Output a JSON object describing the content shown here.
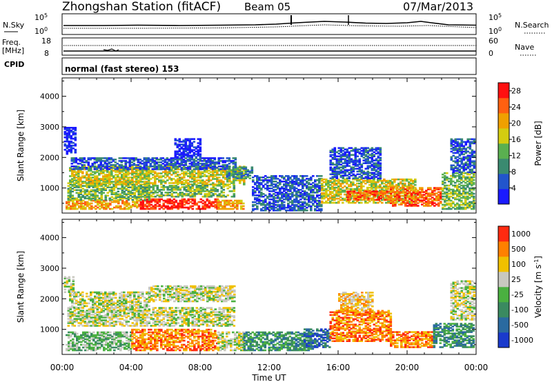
{
  "header": {
    "title": "Zhongshan Station (fitACF)",
    "beam": "Beam 05",
    "date": "07/Mar/2013"
  },
  "strips": {
    "nsky": {
      "label": "N.Sky",
      "left_ticks": [
        "10^5",
        "10^0"
      ],
      "right_ticks": [
        "10^5",
        "10^0"
      ],
      "right_label": "N.Search"
    },
    "freq": {
      "label_top": "Freq.",
      "label_bottom": "[MHz]",
      "left_ticks": [
        "18",
        "8"
      ],
      "right_ticks": [
        "60",
        "0"
      ],
      "right_label": "Nave"
    },
    "cpid": {
      "label": "CPID",
      "text": "normal (fast stereo) 153"
    }
  },
  "chart_data": [
    {
      "type": "heatmap",
      "panel": "power",
      "ylabel": "Slant Range [km]",
      "xlabel": "Time UT",
      "xlim": [
        "00:00",
        "24:00"
      ],
      "ylim": [
        180,
        4600
      ],
      "y_ticks": [
        1000,
        2000,
        3000,
        4000
      ],
      "x_ticks": [
        "00:00",
        "04:00",
        "08:00",
        "12:00",
        "16:00",
        "20:00",
        "00:00"
      ],
      "colorbar": {
        "label": "Power [dB]",
        "ticks": [
          4,
          8,
          12,
          16,
          20,
          24,
          28
        ],
        "range": [
          0,
          30
        ],
        "colors": [
          "#1a1aff",
          "#2255cc",
          "#3a8a70",
          "#5ab050",
          "#d4cc10",
          "#f0a000",
          "#ff6010",
          "#ff1010"
        ]
      },
      "blobs": [
        {
          "t0": 0.2,
          "t1": 4.5,
          "r0": 300,
          "r1": 600,
          "lvl": 5
        },
        {
          "t0": 4.5,
          "t1": 9.0,
          "r0": 300,
          "r1": 650,
          "lvl": 7
        },
        {
          "t0": 9.0,
          "t1": 10.5,
          "r0": 300,
          "r1": 600,
          "lvl": 5
        },
        {
          "t0": 0.3,
          "t1": 5.0,
          "r0": 600,
          "r1": 1200,
          "lvl": 3
        },
        {
          "t0": 0.4,
          "t1": 10.5,
          "r0": 1100,
          "r1": 1700,
          "lvl": 4
        },
        {
          "t0": 0.5,
          "t1": 10.0,
          "r0": 1600,
          "r1": 2000,
          "lvl": 1
        },
        {
          "t0": 0.1,
          "t1": 0.8,
          "r0": 2100,
          "r1": 3000,
          "lvl": 0
        },
        {
          "t0": 4.5,
          "t1": 10.0,
          "r0": 700,
          "r1": 1100,
          "lvl": 3
        },
        {
          "t0": 6.5,
          "t1": 8.0,
          "r0": 2000,
          "r1": 2600,
          "lvl": 0
        },
        {
          "t0": 9.5,
          "t1": 11.0,
          "r0": 1300,
          "r1": 1700,
          "lvl": 2
        },
        {
          "t0": 11.0,
          "t1": 15.0,
          "r0": 250,
          "r1": 1400,
          "lvl": 1
        },
        {
          "t0": 15.0,
          "t1": 20.5,
          "r0": 500,
          "r1": 1300,
          "lvl": 4
        },
        {
          "t0": 16.5,
          "t1": 19.0,
          "r0": 600,
          "r1": 900,
          "lvl": 6
        },
        {
          "t0": 15.5,
          "t1": 18.5,
          "r0": 1300,
          "r1": 2300,
          "lvl": 1
        },
        {
          "t0": 19.0,
          "t1": 22.0,
          "r0": 400,
          "r1": 1000,
          "lvl": 6
        },
        {
          "t0": 22.0,
          "t1": 23.9,
          "r0": 300,
          "r1": 1500,
          "lvl": 3
        },
        {
          "t0": 22.5,
          "t1": 23.9,
          "r0": 1500,
          "r1": 2600,
          "lvl": 1
        }
      ]
    },
    {
      "type": "heatmap",
      "panel": "velocity",
      "ylabel": "Slant Range [km]",
      "xlabel": "Time UT",
      "xlim": [
        "00:00",
        "24:00"
      ],
      "ylim": [
        180,
        4600
      ],
      "y_ticks": [
        1000,
        2000,
        3000,
        4000
      ],
      "x_ticks": [
        "00:00",
        "04:00",
        "08:00",
        "12:00",
        "16:00",
        "20:00",
        "00:00"
      ],
      "colorbar": {
        "label": "Velocity [m s^-1]",
        "ticks": [
          "1000",
          "500",
          "100",
          "25",
          "-25",
          "-100",
          "-500",
          "-1000"
        ],
        "colors": [
          "#1a3acc",
          "#2a6aa0",
          "#3a8a60",
          "#4ab040",
          "#c8c8c0",
          "#f0c000",
          "#ff8000",
          "#ff2a10"
        ]
      },
      "blobs": [
        {
          "t0": 0.2,
          "t1": 4.0,
          "r0": 300,
          "r1": 900,
          "lvl": 3
        },
        {
          "t0": 4.0,
          "t1": 9.0,
          "r0": 300,
          "r1": 1000,
          "lvl": 6
        },
        {
          "t0": 9.0,
          "t1": 10.5,
          "r0": 300,
          "r1": 900,
          "lvl": 4
        },
        {
          "t0": 0.3,
          "t1": 10.0,
          "r0": 1100,
          "r1": 1700,
          "lvl": 4
        },
        {
          "t0": 0.4,
          "t1": 5.0,
          "r0": 1700,
          "r1": 2200,
          "lvl": 4
        },
        {
          "t0": 0.1,
          "t1": 0.7,
          "r0": 2200,
          "r1": 2700,
          "lvl": 4
        },
        {
          "t0": 5.0,
          "t1": 10.0,
          "r0": 1900,
          "r1": 2400,
          "lvl": 4
        },
        {
          "t0": 10.5,
          "t1": 14.5,
          "r0": 300,
          "r1": 900,
          "lvl": 2
        },
        {
          "t0": 14.0,
          "t1": 15.5,
          "r0": 400,
          "r1": 1000,
          "lvl": 1
        },
        {
          "t0": 15.5,
          "t1": 19.0,
          "r0": 600,
          "r1": 1600,
          "lvl": 6
        },
        {
          "t0": 16.0,
          "t1": 18.0,
          "r0": 1600,
          "r1": 2200,
          "lvl": 5
        },
        {
          "t0": 19.0,
          "t1": 21.5,
          "r0": 400,
          "r1": 900,
          "lvl": 6
        },
        {
          "t0": 21.5,
          "t1": 23.9,
          "r0": 400,
          "r1": 1200,
          "lvl": 2
        },
        {
          "t0": 22.5,
          "t1": 23.9,
          "r0": 1300,
          "r1": 2600,
          "lvl": 4
        }
      ]
    }
  ]
}
